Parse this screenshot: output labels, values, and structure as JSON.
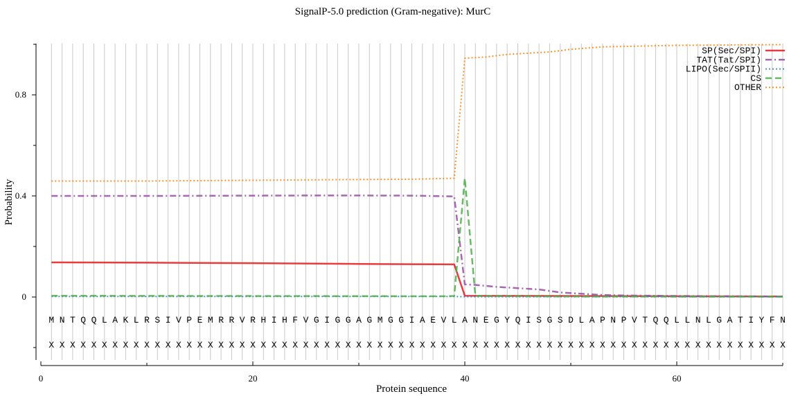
{
  "chart_data": {
    "type": "line",
    "title": "SignalP-5.0 prediction (Gram-negative):  MurC",
    "xlabel": "Protein sequence",
    "ylabel": "Probability",
    "xlim": [
      0,
      70
    ],
    "ylim": [
      -0.25,
      1.0
    ],
    "x_ticks": [
      0,
      20,
      40,
      60
    ],
    "x_minor_ticks": [
      10,
      30,
      50,
      70
    ],
    "y_ticks": [
      0,
      0.4,
      0.8
    ],
    "y_tick_labels": [
      "0",
      "0.4",
      "0.8"
    ],
    "y_minor_ticks": [
      -0.2,
      0.2,
      0.6,
      1.0
    ],
    "grid": "vertical lines at every residue position",
    "legend_position": "top-right",
    "sequence": "MNTQQLAKLRSIVPEMRRVRHIHFVGIGGAGMGGIAEVLANEGYQISGSDLAPNPVTQQLLNLGATIYFN",
    "annotation_row": "XXXXXXXXXXXXXXXXXXXXXXXXXXXXXXXXXXXXXXXXXXXXXXXXXXXXXXXXXXXXXXXXXXXXXX",
    "series": [
      {
        "name": "SP(Sec/SPI)",
        "color": "#e41a1c",
        "dash": "solid",
        "points": [
          [
            1,
            0.137
          ],
          [
            10,
            0.136
          ],
          [
            20,
            0.134
          ],
          [
            30,
            0.131
          ],
          [
            35,
            0.13
          ],
          [
            39,
            0.129
          ],
          [
            40,
            0.005
          ],
          [
            50,
            0.004
          ],
          [
            60,
            0.003
          ],
          [
            70,
            0.002
          ]
        ]
      },
      {
        "name": "TAT(Tat/SPI)",
        "color": "#984ea3",
        "dash": "dashdot",
        "points": [
          [
            1,
            0.4
          ],
          [
            10,
            0.4
          ],
          [
            20,
            0.401
          ],
          [
            28,
            0.402
          ],
          [
            35,
            0.401
          ],
          [
            39,
            0.398
          ],
          [
            40,
            0.05
          ],
          [
            41,
            0.048
          ],
          [
            43,
            0.04
          ],
          [
            45,
            0.035
          ],
          [
            47,
            0.03
          ],
          [
            49,
            0.018
          ],
          [
            51,
            0.013
          ],
          [
            53,
            0.008
          ],
          [
            55,
            0.006
          ],
          [
            60,
            0.004
          ],
          [
            70,
            0.002
          ]
        ]
      },
      {
        "name": "LIPO(Sec/SPII)",
        "color": "#377eb8",
        "dash": "dotted",
        "points": [
          [
            1,
            0.002
          ],
          [
            20,
            0.002
          ],
          [
            39,
            0.002
          ],
          [
            40,
            0.001
          ],
          [
            70,
            0.001
          ]
        ]
      },
      {
        "name": "CS",
        "color": "#4daf4a",
        "dash": "dashed",
        "points": [
          [
            1,
            0.005
          ],
          [
            38,
            0.003
          ],
          [
            39,
            0.004
          ],
          [
            40,
            0.47
          ],
          [
            41,
            0.004
          ],
          [
            50,
            0.002
          ],
          [
            70,
            0.001
          ]
        ]
      },
      {
        "name": "OTHER",
        "color": "#ff7f00",
        "dash": "dotted",
        "points": [
          [
            1,
            0.459
          ],
          [
            10,
            0.459
          ],
          [
            20,
            0.462
          ],
          [
            30,
            0.465
          ],
          [
            35,
            0.466
          ],
          [
            39,
            0.47
          ],
          [
            40,
            0.945
          ],
          [
            42,
            0.95
          ],
          [
            44,
            0.96
          ],
          [
            48,
            0.97
          ],
          [
            50,
            0.98
          ],
          [
            53,
            0.99
          ],
          [
            60,
            0.996
          ],
          [
            70,
            0.999
          ]
        ]
      }
    ]
  }
}
